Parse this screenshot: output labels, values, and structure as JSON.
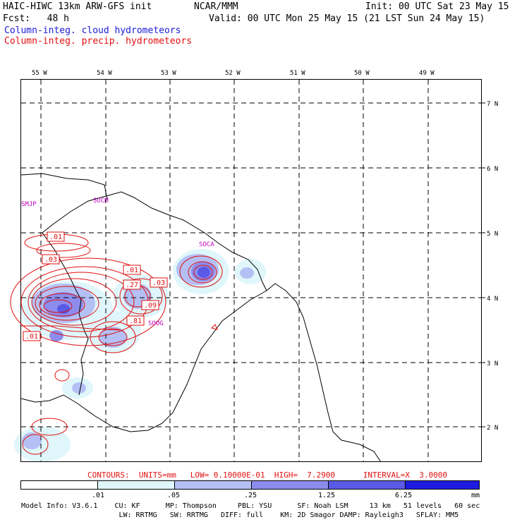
{
  "header": {
    "model_title": "HAIC-HIWC 13km ARW-GFS init",
    "org": "NCAR/MMM",
    "init": "Init: 00 UTC Sat 23 May 15",
    "fcst": "Fcst:   48 h",
    "valid": "Valid: 00 UTC Mon 25 May 15 (21 LST Sun 24 May 15)",
    "legend_cloud": "Column-integ. cloud hydrometeors",
    "legend_precip": "Column-integ. precip. hydrometeors"
  },
  "map": {
    "lon_labels": [
      "55 W",
      "54 W",
      "53 W",
      "52 W",
      "51 W",
      "50 W",
      "49 W"
    ],
    "lat_labels": [
      "7 N",
      "6 N",
      "5 N",
      "4 N",
      "3 N",
      "2 N"
    ],
    "stations": [
      "SMJP",
      "SOCM",
      "SOCA",
      "SOOG"
    ],
    "contour_labels": [
      ".01",
      ".03",
      ".01",
      ".27",
      ".03",
      ".09",
      ".81",
      ".01"
    ]
  },
  "contour_info": {
    "line": "CONTOURS:  UNITS=mm   LOW= 0.10000E-01  HIGH=  7.2900      INTERVAL=X  3.0000"
  },
  "colorbar": {
    "ticks": [
      ".01",
      ".05",
      ".25",
      "1.25",
      "6.25"
    ],
    "units": "mm",
    "colors": [
      "#ffffff",
      "#dff6fb",
      "#b4c0f4",
      "#8c8cec",
      "#5a5ae6",
      "#1c1ce0"
    ]
  },
  "model_info": {
    "line1": "Model Info: V3.6.1    CU: KF      MP: Thompson     PBL: YSU      SF: Noah LSM     13 km   51 levels   60 sec",
    "line2": "                       LW: RRTMG   SW: RRTMG   DIFF: full    KM: 2D Smagor DAMP: Rayleigh3   SFLAY: MM5"
  }
}
